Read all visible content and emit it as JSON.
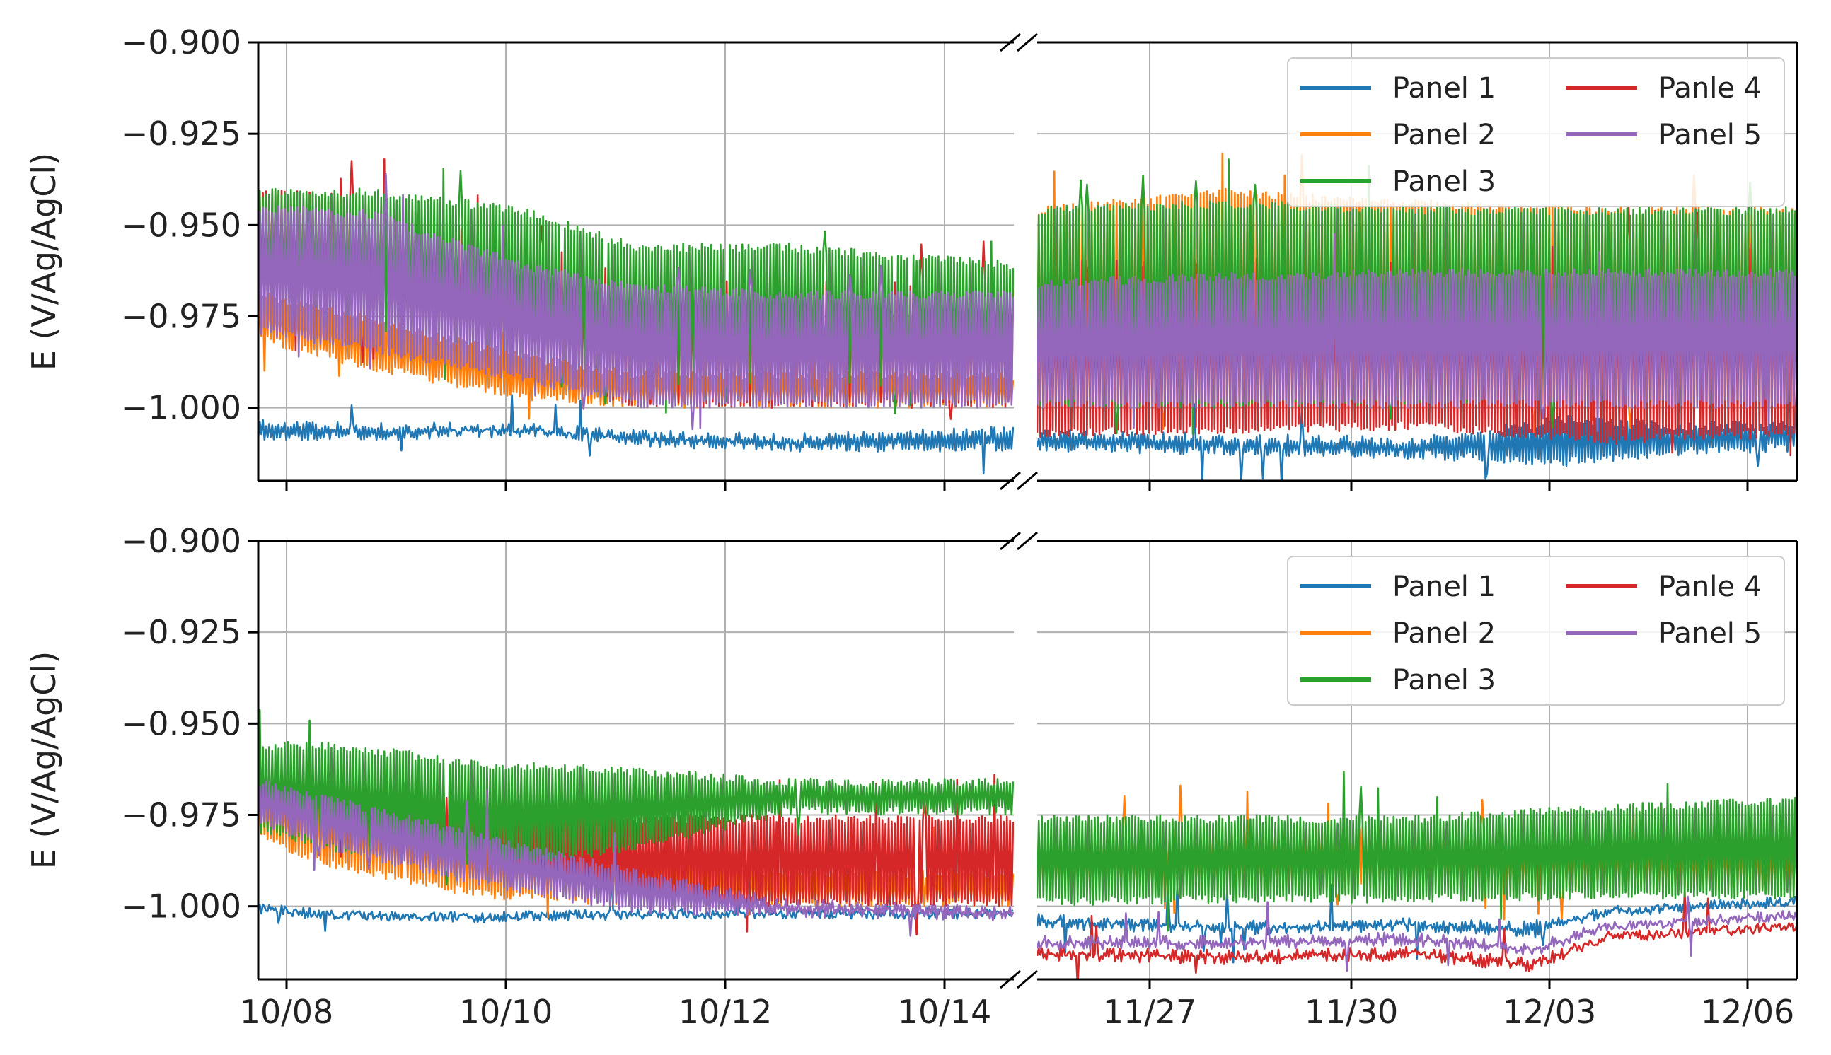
{
  "chart_data": [
    {
      "type": "line",
      "title": "",
      "xlabel": "",
      "ylabel": "E (V/Ag/AgCl)",
      "ylim": [
        -1.02,
        -0.9
      ],
      "y_ticks": [
        -0.9,
        -0.925,
        -0.95,
        -0.975,
        -1.0
      ],
      "y_tick_labels": [
        "−0.900",
        "−0.925",
        "−0.950",
        "−0.975",
        "−1.000"
      ],
      "x_broken_axis": true,
      "x_segments": [
        {
          "range": [
            "10/07 18:00",
            "10/14 14:00"
          ],
          "tick_labels": [
            "10/08",
            "10/10",
            "10/12",
            "10/14"
          ]
        },
        {
          "range": [
            "11/26 00:00",
            "12/06 12:00"
          ],
          "tick_labels": [
            "11/27",
            "11/30",
            "12/03",
            "12/06"
          ]
        }
      ],
      "grid": true,
      "legend": {
        "placement": "top-right",
        "columns": 2,
        "entries": [
          "Panel 1",
          "Panel 2",
          "Panel 3",
          "Panle 4",
          "Panel 5"
        ]
      },
      "series": [
        {
          "name": "Panel 1",
          "color": "#1f77b4",
          "seg1": {
            "t": [
              0,
              0.15,
              0.35,
              0.5,
              0.7,
              0.85,
              1
            ],
            "lo": [
              -1.009,
              -1.009,
              -1.008,
              -1.011,
              -1.012,
              -1.012,
              -1.012
            ],
            "hi": [
              -1.003,
              -1.004,
              -1.004,
              -1.006,
              -1.007,
              -1.006,
              -1.005
            ]
          },
          "seg2": {
            "t": [
              0,
              0.25,
              0.5,
              0.7,
              0.85,
              1
            ],
            "lo": [
              -1.012,
              -1.013,
              -1.014,
              -1.016,
              -1.013,
              -1.012
            ],
            "hi": [
              -1.006,
              -1.007,
              -1.008,
              -1.002,
              -1.004,
              -1.003
            ]
          }
        },
        {
          "name": "Panel 2",
          "color": "#ff7f0e",
          "seg1": {
            "t": [
              0,
              0.15,
              0.35,
              0.5,
              0.7,
              1
            ],
            "lo": [
              -0.982,
              -0.99,
              -0.998,
              -1.0,
              -1.0,
              -1.0
            ],
            "hi": [
              -0.968,
              -0.975,
              -0.985,
              -0.99,
              -0.99,
              -0.99
            ]
          },
          "seg2": {
            "t": [
              0,
              0.25,
              0.5,
              0.75,
              1
            ],
            "lo": [
              -1.0,
              -1.0,
              -1.0,
              -1.0,
              -1.0
            ],
            "hi": [
              -0.945,
              -0.94,
              -0.943,
              -0.945,
              -0.945
            ]
          }
        },
        {
          "name": "Panel 3",
          "color": "#2ca02c",
          "seg1": {
            "t": [
              0,
              0.15,
              0.35,
              0.5,
              0.7,
              1
            ],
            "lo": [
              -0.975,
              -0.98,
              -0.99,
              -0.995,
              -0.995,
              -0.995
            ],
            "hi": [
              -0.94,
              -0.94,
              -0.945,
              -0.955,
              -0.955,
              -0.96
            ]
          },
          "seg2": {
            "t": [
              0,
              0.25,
              0.5,
              0.75,
              1
            ],
            "lo": [
              -1.0,
              -1.0,
              -0.999,
              -0.998,
              -0.998
            ],
            "hi": [
              -0.945,
              -0.943,
              -0.945,
              -0.945,
              -0.945
            ]
          }
        },
        {
          "name": "Panle 4",
          "color": "#d62728",
          "seg1": {
            "t": [
              0,
              0.15,
              0.35,
              0.5,
              0.7,
              1
            ],
            "lo": [
              -0.975,
              -0.98,
              -0.99,
              -1.0,
              -1.0,
              -1.0
            ],
            "hi": [
              -0.94,
              -0.942,
              -0.955,
              -0.962,
              -0.965,
              -0.965
            ]
          },
          "seg2": {
            "t": [
              0,
              0.25,
              0.5,
              0.75,
              1
            ],
            "lo": [
              -1.008,
              -1.007,
              -1.006,
              -1.01,
              -1.008
            ],
            "hi": [
              -0.96,
              -0.958,
              -0.958,
              -0.955,
              -0.955
            ]
          }
        },
        {
          "name": "Panel 5",
          "color": "#9467bd",
          "seg1": {
            "t": [
              0,
              0.15,
              0.35,
              0.5,
              0.7,
              1
            ],
            "lo": [
              -0.98,
              -0.985,
              -0.993,
              -1.0,
              -1.0,
              -1.0
            ],
            "hi": [
              -0.944,
              -0.946,
              -0.96,
              -0.966,
              -0.968,
              -0.968
            ]
          },
          "seg2": {
            "t": [
              0,
              0.25,
              0.5,
              0.75,
              1
            ],
            "lo": [
              -1.0,
              -1.0,
              -1.0,
              -1.0,
              -1.0
            ],
            "hi": [
              -0.965,
              -0.963,
              -0.962,
              -0.962,
              -0.962
            ]
          }
        }
      ]
    },
    {
      "type": "line",
      "title": "",
      "xlabel": "",
      "ylabel": "E (V/Ag/AgCl)",
      "ylim": [
        -1.02,
        -0.9
      ],
      "y_ticks": [
        -0.9,
        -0.925,
        -0.95,
        -0.975,
        -1.0
      ],
      "y_tick_labels": [
        "−0.900",
        "−0.925",
        "−0.950",
        "−0.975",
        "−1.000"
      ],
      "x_broken_axis": true,
      "x_segments": [
        {
          "range": [
            "10/07 18:00",
            "10/14 14:00"
          ],
          "tick_labels": [
            "10/08",
            "10/10",
            "10/12",
            "10/14"
          ]
        },
        {
          "range": [
            "11/26 00:00",
            "12/06 12:00"
          ],
          "tick_labels": [
            "11/27",
            "11/30",
            "12/03",
            "12/06"
          ]
        }
      ],
      "grid": true,
      "legend": {
        "placement": "top-right",
        "columns": 2,
        "entries": [
          "Panel 1",
          "Panel 2",
          "Panel 3",
          "Panle 4",
          "Panel 5"
        ]
      },
      "series": [
        {
          "name": "Panel 1",
          "color": "#1f77b4",
          "seg1": {
            "t": [
              0,
              0.1,
              0.3,
              0.5,
              0.7,
              1
            ],
            "lo": [
              -1.002,
              -1.004,
              -1.004,
              -1.003,
              -1.003,
              -1.003
            ],
            "hi": [
              -0.999,
              -1.001,
              -1.002,
              -1.001,
              -1.001,
              -1.001
            ]
          },
          "seg2": {
            "t": [
              0,
              0.25,
              0.5,
              0.65,
              0.75,
              1
            ],
            "lo": [
              -1.006,
              -1.008,
              -1.007,
              -1.009,
              -1.003,
              -1.0
            ],
            "hi": [
              -1.002,
              -1.004,
              -1.003,
              -1.004,
              -1.0,
              -0.997
            ]
          }
        },
        {
          "name": "Panel 2",
          "color": "#ff7f0e",
          "seg1": {
            "t": [
              0,
              0.1,
              0.3,
              0.5,
              0.7,
              1
            ],
            "lo": [
              -0.982,
              -0.99,
              -0.998,
              -1.0,
              -1.0,
              -1.0
            ],
            "hi": [
              -0.965,
              -0.97,
              -0.98,
              -0.985,
              -0.99,
              -0.99
            ]
          },
          "seg2": {
            "t": [
              0,
              0.25,
              0.5,
              0.75,
              1
            ],
            "lo": [
              -0.996,
              -0.996,
              -0.996,
              -0.996,
              -0.996
            ],
            "hi": [
              -0.98,
              -0.978,
              -0.978,
              -0.98,
              -0.98
            ]
          }
        },
        {
          "name": "Panel 3",
          "color": "#2ca02c",
          "seg1": {
            "t": [
              0,
              0.1,
              0.3,
              0.5,
              0.7,
              1
            ],
            "lo": [
              -0.98,
              -0.985,
              -0.99,
              -0.985,
              -0.975,
              -0.975
            ],
            "hi": [
              -0.955,
              -0.955,
              -0.96,
              -0.962,
              -0.965,
              -0.965
            ]
          },
          "seg2": {
            "t": [
              0,
              0.25,
              0.5,
              0.75,
              1
            ],
            "lo": [
              -1.0,
              -0.999,
              -0.999,
              -0.998,
              -0.998
            ],
            "hi": [
              -0.975,
              -0.975,
              -0.975,
              -0.972,
              -0.97
            ]
          }
        },
        {
          "name": "Panle 4",
          "color": "#d62728",
          "seg1": {
            "t": [
              0,
              0.1,
              0.3,
              0.5,
              0.7,
              1
            ],
            "lo": [
              -0.975,
              -0.98,
              -0.99,
              -1.0,
              -1.0,
              -1.0
            ],
            "hi": [
              -0.963,
              -0.965,
              -0.972,
              -0.975,
              -0.975,
              -0.975
            ]
          },
          "seg2": {
            "t": [
              0,
              0.25,
              0.5,
              0.65,
              0.75,
              1
            ],
            "lo": [
              -1.015,
              -1.016,
              -1.015,
              -1.018,
              -1.01,
              -1.007
            ],
            "hi": [
              -1.011,
              -1.012,
              -1.011,
              -1.014,
              -1.007,
              -1.004
            ]
          }
        },
        {
          "name": "Panel 5",
          "color": "#9467bd",
          "seg1": {
            "t": [
              0,
              0.1,
              0.3,
              0.5,
              0.7,
              1
            ],
            "lo": [
              -0.978,
              -0.985,
              -0.995,
              -1.002,
              -1.003,
              -1.004
            ],
            "hi": [
              -0.965,
              -0.97,
              -0.98,
              -0.99,
              -0.998,
              -1.0
            ]
          },
          "seg2": {
            "t": [
              0,
              0.25,
              0.5,
              0.65,
              0.75,
              1
            ],
            "lo": [
              -1.012,
              -1.012,
              -1.011,
              -1.014,
              -1.007,
              -1.004
            ],
            "hi": [
              -1.008,
              -1.008,
              -1.007,
              -1.01,
              -1.004,
              -1.001
            ]
          }
        }
      ]
    }
  ]
}
